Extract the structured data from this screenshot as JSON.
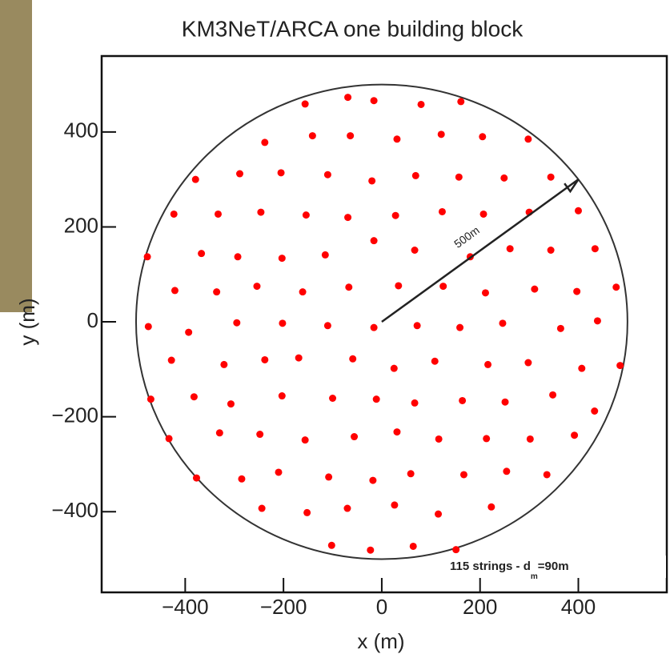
{
  "chart_data": {
    "type": "scatter",
    "title": "KM3NeT/ARCA one building block",
    "xlabel": "x (m)",
    "ylabel": "y (m)",
    "xlim": [
      -570,
      580
    ],
    "ylim": [
      -570,
      560
    ],
    "xticks": [
      {
        "value": -400,
        "label": "−400"
      },
      {
        "value": -200,
        "label": "−200"
      },
      0,
      200,
      400
    ],
    "yticks": [
      {
        "value": -400,
        "label": "−400"
      },
      {
        "value": -200,
        "label": "−200"
      },
      0,
      200,
      400
    ],
    "color": "#ff0000",
    "circle_radius": 500,
    "arrow": {
      "from": [
        0,
        0
      ],
      "to": [
        400,
        300
      ],
      "label": "500m"
    },
    "annotation": {
      "text": "115 strings - d",
      "sub": "m",
      "tail": "=90m"
    },
    "x": [
      -156,
      -69,
      -16,
      80,
      161,
      -238,
      -141,
      -64,
      31,
      121,
      205,
      298,
      -379,
      -289,
      -205,
      -110,
      -20,
      69,
      157,
      249,
      344,
      -423,
      -333,
      -246,
      -154,
      -69,
      28,
      123,
      207,
      300,
      400,
      -477,
      -367,
      -293,
      -203,
      -115,
      -16,
      67,
      180,
      261,
      344,
      434,
      -421,
      -336,
      -254,
      -161,
      -67,
      34,
      125,
      211,
      311,
      397,
      477,
      -475,
      -393,
      -295,
      -202,
      -110,
      -16,
      72,
      159,
      246,
      364,
      439,
      -428,
      -321,
      -238,
      -169,
      -59,
      25,
      108,
      216,
      298,
      407,
      485,
      -470,
      -382,
      -307,
      -203,
      -100,
      -11,
      67,
      164,
      251,
      348,
      433,
      -433,
      -330,
      -248,
      -156,
      -56,
      31,
      116,
      213,
      302,
      392,
      -377,
      -285,
      -210,
      -108,
      -18,
      59,
      167,
      254,
      336,
      -244,
      -152,
      -70,
      26,
      115,
      223,
      -102,
      -23,
      64,
      151
    ],
    "y": [
      459,
      473,
      466,
      458,
      464,
      378,
      392,
      392,
      385,
      395,
      390,
      385,
      300,
      312,
      314,
      310,
      297,
      308,
      305,
      303,
      305,
      227,
      227,
      231,
      225,
      220,
      224,
      232,
      227,
      231,
      234,
      137,
      144,
      137,
      134,
      141,
      171,
      151,
      137,
      154,
      151,
      154,
      66,
      63,
      75,
      63,
      73,
      76,
      75,
      61,
      69,
      64,
      73,
      -10,
      -22,
      -2,
      -3,
      -8,
      -12,
      -8,
      -12,
      -3,
      -14,
      2,
      -81,
      -90,
      -80,
      -76,
      -78,
      -98,
      -83,
      -90,
      -86,
      -98,
      -92,
      -163,
      -158,
      -173,
      -156,
      -161,
      -163,
      -171,
      -166,
      -169,
      -154,
      -188,
      -246,
      -234,
      -237,
      -249,
      -242,
      -232,
      -247,
      -246,
      -247,
      -239,
      -329,
      -331,
      -317,
      -327,
      -334,
      -320,
      -322,
      -315,
      -322,
      -393,
      -402,
      -393,
      -386,
      -405,
      -390,
      -471,
      -481,
      -473,
      -480
    ]
  }
}
